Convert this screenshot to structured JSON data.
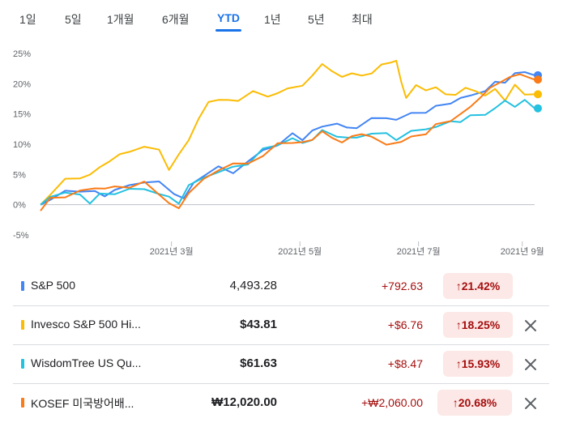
{
  "tabs": [
    {
      "label": "1일",
      "active": false
    },
    {
      "label": "5일",
      "active": false
    },
    {
      "label": "1개월",
      "active": false
    },
    {
      "label": "6개월",
      "active": false
    },
    {
      "label": "YTD",
      "active": true
    },
    {
      "label": "1년",
      "active": false
    },
    {
      "label": "5년",
      "active": false
    },
    {
      "label": "최대",
      "active": false
    }
  ],
  "chart_data": {
    "type": "line",
    "y_ticks": [
      "25%",
      "20%",
      "15%",
      "10%",
      "5%",
      "0%",
      "-5%"
    ],
    "y_unit": "%",
    "ylim": [
      -5,
      25
    ],
    "x_ticks": [
      "2021년 3월",
      "2021년 5월",
      "2021년 7월",
      "2021년 9월"
    ],
    "xlim": [
      "2021-01-04",
      "2021-09-07"
    ],
    "grid": false,
    "baseline": 0,
    "series": [
      {
        "name": "S&P 500",
        "color": "#4285f4",
        "values": [
          [
            0,
            0
          ],
          [
            0.02,
            1
          ],
          [
            0.05,
            2
          ],
          [
            0.08,
            2.5
          ],
          [
            0.11,
            2
          ],
          [
            0.13,
            1.5
          ],
          [
            0.15,
            2.5
          ],
          [
            0.18,
            3
          ],
          [
            0.21,
            4
          ],
          [
            0.24,
            3.5
          ],
          [
            0.27,
            2
          ],
          [
            0.29,
            1
          ],
          [
            0.31,
            3.5
          ],
          [
            0.33,
            5
          ],
          [
            0.36,
            6
          ],
          [
            0.39,
            5.5
          ],
          [
            0.42,
            7
          ],
          [
            0.45,
            9
          ],
          [
            0.48,
            10
          ],
          [
            0.51,
            11.5
          ],
          [
            0.53,
            11
          ],
          [
            0.55,
            12
          ],
          [
            0.57,
            13
          ],
          [
            0.6,
            13.5
          ],
          [
            0.62,
            12.5
          ],
          [
            0.64,
            13
          ],
          [
            0.67,
            14
          ],
          [
            0.7,
            14.5
          ],
          [
            0.72,
            14
          ],
          [
            0.75,
            15
          ],
          [
            0.78,
            15.5
          ],
          [
            0.8,
            16
          ],
          [
            0.83,
            17
          ],
          [
            0.85,
            17.5
          ],
          [
            0.87,
            18
          ],
          [
            0.9,
            19
          ],
          [
            0.92,
            20
          ],
          [
            0.94,
            20.5
          ],
          [
            0.96,
            21.5
          ],
          [
            0.98,
            22
          ],
          [
            1,
            21.4
          ]
        ]
      },
      {
        "name": "Invesco S&P 500 Hi...",
        "color": "#fbbc04",
        "values": [
          [
            0,
            0
          ],
          [
            0.02,
            2
          ],
          [
            0.05,
            4
          ],
          [
            0.08,
            4.5
          ],
          [
            0.1,
            5
          ],
          [
            0.12,
            6
          ],
          [
            0.14,
            7.5
          ],
          [
            0.16,
            8
          ],
          [
            0.18,
            9
          ],
          [
            0.21,
            9.5
          ],
          [
            0.24,
            9
          ],
          [
            0.26,
            6
          ],
          [
            0.28,
            8
          ],
          [
            0.3,
            11
          ],
          [
            0.32,
            14
          ],
          [
            0.34,
            17
          ],
          [
            0.36,
            17.5
          ],
          [
            0.38,
            17
          ],
          [
            0.4,
            17.5
          ],
          [
            0.43,
            18.5
          ],
          [
            0.46,
            18
          ],
          [
            0.48,
            18.5
          ],
          [
            0.5,
            19
          ],
          [
            0.53,
            20
          ],
          [
            0.55,
            21
          ],
          [
            0.57,
            23.5
          ],
          [
            0.59,
            22
          ],
          [
            0.61,
            21
          ],
          [
            0.63,
            22
          ],
          [
            0.65,
            21
          ],
          [
            0.67,
            22
          ],
          [
            0.69,
            23
          ],
          [
            0.71,
            23.5
          ],
          [
            0.72,
            24
          ],
          [
            0.73,
            20
          ],
          [
            0.74,
            18
          ],
          [
            0.76,
            19.5
          ],
          [
            0.78,
            19
          ],
          [
            0.8,
            19.5
          ],
          [
            0.82,
            18
          ],
          [
            0.84,
            18.5
          ],
          [
            0.86,
            19
          ],
          [
            0.88,
            19
          ],
          [
            0.9,
            18
          ],
          [
            0.92,
            19
          ],
          [
            0.94,
            17.5
          ],
          [
            0.96,
            19.5
          ],
          [
            0.98,
            18.5
          ],
          [
            1,
            18.25
          ]
        ]
      },
      {
        "name": "WisdomTree US Qu...",
        "color": "#24c1e0",
        "values": [
          [
            0,
            0
          ],
          [
            0.02,
            1.5
          ],
          [
            0.05,
            2
          ],
          [
            0.08,
            1.5
          ],
          [
            0.1,
            0.5
          ],
          [
            0.12,
            1.5
          ],
          [
            0.15,
            2
          ],
          [
            0.18,
            2.5
          ],
          [
            0.21,
            2.5
          ],
          [
            0.24,
            2
          ],
          [
            0.26,
            1
          ],
          [
            0.28,
            0.5
          ],
          [
            0.3,
            3
          ],
          [
            0.33,
            4.5
          ],
          [
            0.36,
            5.5
          ],
          [
            0.39,
            6
          ],
          [
            0.42,
            7
          ],
          [
            0.45,
            9
          ],
          [
            0.48,
            10
          ],
          [
            0.51,
            11
          ],
          [
            0.53,
            10
          ],
          [
            0.55,
            11
          ],
          [
            0.57,
            12
          ],
          [
            0.6,
            11.5
          ],
          [
            0.62,
            11
          ],
          [
            0.64,
            11
          ],
          [
            0.67,
            12
          ],
          [
            0.7,
            11.5
          ],
          [
            0.72,
            11
          ],
          [
            0.75,
            12
          ],
          [
            0.78,
            12.5
          ],
          [
            0.8,
            13
          ],
          [
            0.83,
            13.5
          ],
          [
            0.85,
            14
          ],
          [
            0.87,
            14.5
          ],
          [
            0.9,
            15
          ],
          [
            0.92,
            16
          ],
          [
            0.94,
            17
          ],
          [
            0.96,
            16.5
          ],
          [
            0.98,
            17
          ],
          [
            1,
            15.93
          ]
        ]
      },
      {
        "name": "KOSEF 미국방어배...",
        "color": "#fa7b17",
        "values": [
          [
            0,
            -1
          ],
          [
            0.02,
            1
          ],
          [
            0.05,
            1.5
          ],
          [
            0.08,
            2
          ],
          [
            0.11,
            3
          ],
          [
            0.13,
            2.5
          ],
          [
            0.15,
            3
          ],
          [
            0.18,
            3
          ],
          [
            0.21,
            3.5
          ],
          [
            0.24,
            2
          ],
          [
            0.26,
            0
          ],
          [
            0.28,
            -0.5
          ],
          [
            0.3,
            2
          ],
          [
            0.33,
            4
          ],
          [
            0.36,
            6
          ],
          [
            0.39,
            6.5
          ],
          [
            0.42,
            7
          ],
          [
            0.45,
            8
          ],
          [
            0.48,
            10
          ],
          [
            0.51,
            10.5
          ],
          [
            0.53,
            10
          ],
          [
            0.55,
            11
          ],
          [
            0.57,
            12
          ],
          [
            0.59,
            11
          ],
          [
            0.61,
            10.5
          ],
          [
            0.63,
            11
          ],
          [
            0.65,
            12
          ],
          [
            0.67,
            11
          ],
          [
            0.7,
            10
          ],
          [
            0.73,
            10.5
          ],
          [
            0.75,
            11
          ],
          [
            0.78,
            12
          ],
          [
            0.8,
            13
          ],
          [
            0.83,
            14
          ],
          [
            0.85,
            15
          ],
          [
            0.87,
            16
          ],
          [
            0.89,
            18
          ],
          [
            0.91,
            19
          ],
          [
            0.93,
            20.5
          ],
          [
            0.95,
            21
          ],
          [
            0.97,
            21.5
          ],
          [
            1,
            20.68
          ]
        ]
      }
    ]
  },
  "rows": [
    {
      "name": "S&P 500",
      "color": "#4285f4",
      "price": "4,493.28",
      "change": "+792.63",
      "pct": "21.42%",
      "arrow": "↑",
      "removable": false,
      "bold_price": false
    },
    {
      "name": "Invesco S&P 500 Hi...",
      "color": "#fbbc04",
      "price": "$43.81",
      "change": "+$6.76",
      "pct": "18.25%",
      "arrow": "↑",
      "removable": true,
      "bold_price": true
    },
    {
      "name": "WisdomTree US Qu...",
      "color": "#24c1e0",
      "price": "$61.63",
      "change": "+$8.47",
      "pct": "15.93%",
      "arrow": "↑",
      "removable": true,
      "bold_price": true
    },
    {
      "name": "KOSEF 미국방어배...",
      "color": "#fa7b17",
      "price": "₩12,020.00",
      "change": "+₩2,060.00",
      "pct": "20.68%",
      "arrow": "↑",
      "removable": true,
      "bold_price": true
    }
  ],
  "icons": {
    "close": "close-icon",
    "up_arrow": "arrow-up-icon"
  }
}
